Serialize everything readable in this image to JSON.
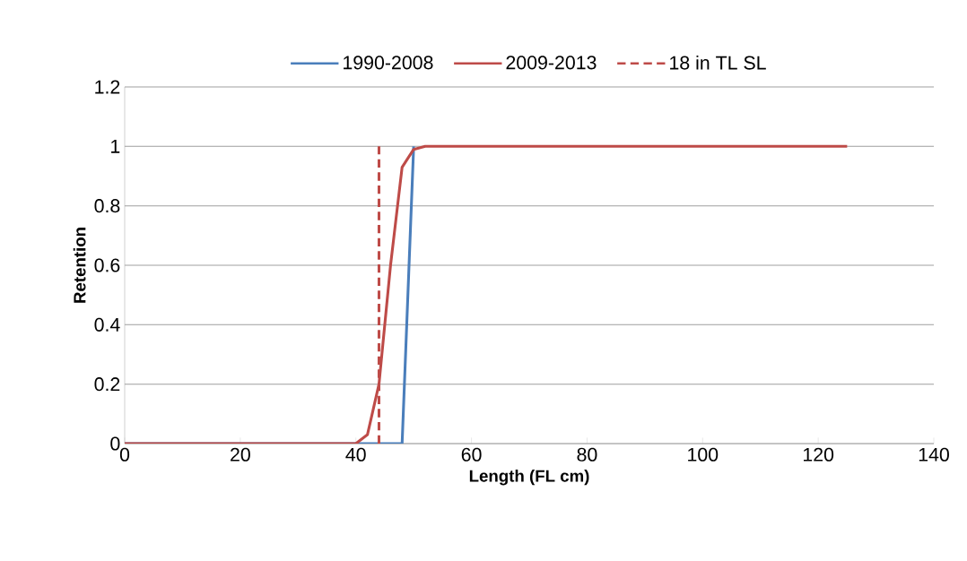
{
  "chart_data": {
    "type": "line",
    "xlabel": "Length (FL cm)",
    "ylabel": "Retention",
    "xlim": [
      0,
      140
    ],
    "xticks": [
      0,
      20,
      40,
      60,
      80,
      100,
      120,
      140
    ],
    "ylim": [
      0,
      1.2
    ],
    "yticks": [
      0,
      0.2,
      0.4,
      0.6,
      0.8,
      1,
      1.2
    ],
    "grid": "y",
    "legend": "top",
    "marker": "none",
    "series": [
      {
        "name": "1990-2008",
        "color": "#4a7ebb",
        "x": [
          0,
          48,
          50
        ],
        "values": [
          0,
          0,
          1
        ],
        "line_style": "solid"
      },
      {
        "name": "2009-2013",
        "color": "#be4b48",
        "x": [
          0,
          40,
          42,
          44,
          46,
          48,
          50,
          52,
          125
        ],
        "values": [
          0,
          0,
          0.03,
          0.2,
          0.6,
          0.93,
          0.99,
          1,
          1
        ],
        "line_style": "solid"
      },
      {
        "name": "18 in TL SL",
        "color": "#be4b48",
        "x": [
          44,
          44
        ],
        "values": [
          0,
          1
        ],
        "line_style": "dashed"
      }
    ]
  }
}
